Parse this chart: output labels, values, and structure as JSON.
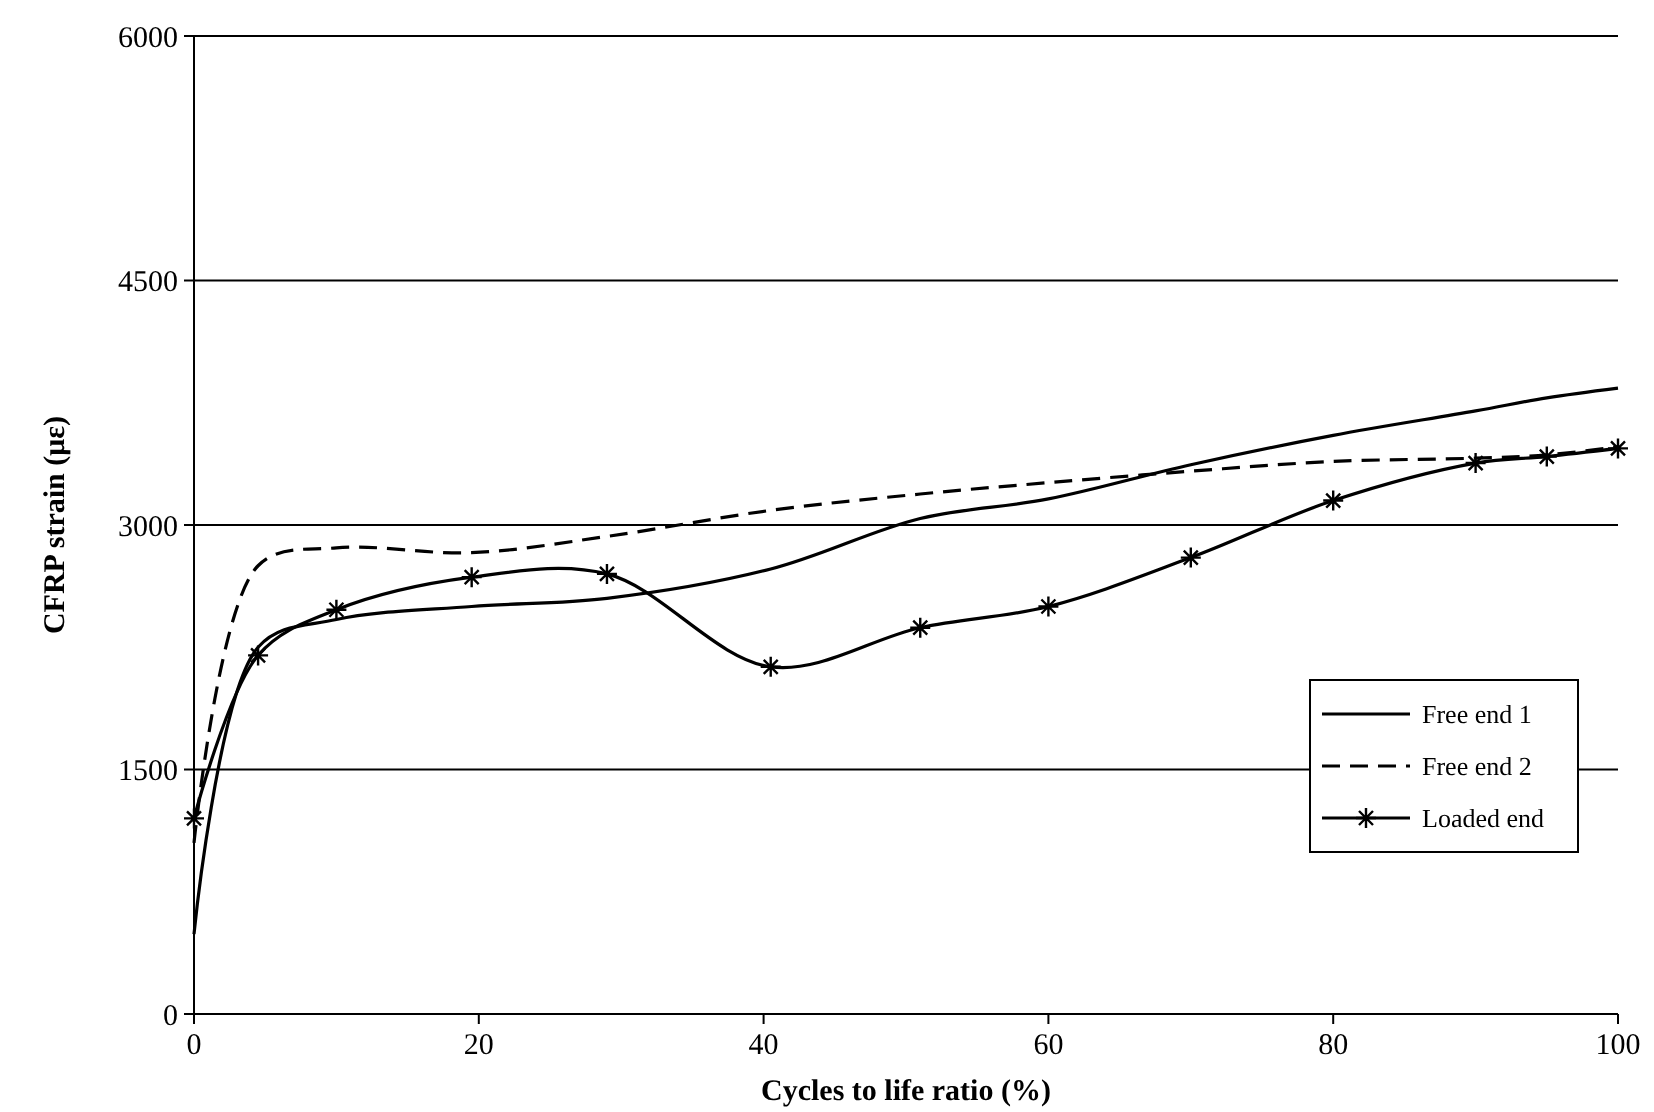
{
  "chart_data": {
    "type": "line",
    "xlabel": "Cycles to life ratio (%)",
    "ylabel": "CFRP strain (με)",
    "x": [
      0,
      4.5,
      10,
      19.5,
      29,
      40.5,
      51,
      60,
      70,
      80,
      90,
      95,
      100
    ],
    "xlim": [
      0,
      100
    ],
    "xticks": [
      0,
      20,
      40,
      60,
      80,
      100
    ],
    "ylim": [
      0,
      6000
    ],
    "yticks": [
      0,
      1500,
      3000,
      4500,
      6000
    ],
    "grid": "y",
    "legend": "right",
    "series": [
      {
        "name": "Free end 1",
        "color": "#000000",
        "line_style": "solid",
        "marker": "none",
        "values": [
          490,
          2250,
          2420,
          2500,
          2550,
          2730,
          3040,
          3160,
          3370,
          3550,
          3700,
          3780,
          3840
        ]
      },
      {
        "name": "Free end 2",
        "color": "#000000",
        "line_style": "dashed",
        "marker": "none",
        "values": [
          1050,
          2750,
          2860,
          2830,
          2930,
          3090,
          3190,
          3260,
          3330,
          3390,
          3410,
          3430,
          3480
        ]
      },
      {
        "name": "Loaded end",
        "color": "#000000",
        "line_style": "solid",
        "marker": "cross",
        "values": [
          1200,
          2200,
          2480,
          2680,
          2700,
          2130,
          2370,
          2500,
          2800,
          3150,
          3380,
          3420,
          3470
        ]
      }
    ]
  }
}
